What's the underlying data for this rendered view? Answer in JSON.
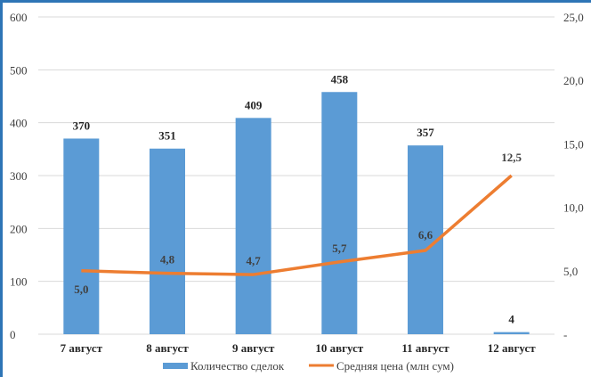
{
  "chart_data": {
    "type": "bar",
    "categories": [
      "7 август",
      "8 август",
      "9 август",
      "10 август",
      "11 август",
      "12 август"
    ],
    "series": [
      {
        "name": "Количество сделок",
        "type": "bar",
        "axis": "left",
        "values": [
          370,
          351,
          409,
          458,
          357,
          4
        ]
      },
      {
        "name": "Средняя цена (млн сум)",
        "type": "line",
        "axis": "right",
        "values": [
          5.0,
          4.8,
          4.7,
          5.7,
          6.6,
          12.5
        ]
      }
    ],
    "bar_labels": [
      "370",
      "351",
      "409",
      "458",
      "357",
      "4"
    ],
    "line_labels": [
      "5,0",
      "4,8",
      "4,7",
      "5,7",
      "6,6",
      "12,5"
    ],
    "ylim": [
      0,
      600
    ],
    "y_ticks": [
      "0",
      "100",
      "200",
      "300",
      "400",
      "500",
      "600"
    ],
    "y2lim": [
      0,
      25
    ],
    "y2_ticks": [
      "-",
      "5,0",
      "10,0",
      "15,0",
      "20,0",
      "25,0"
    ],
    "grid": true,
    "legend": "bottom",
    "colors": {
      "bar": "#5b9bd5",
      "line": "#ed7d31",
      "grid": "#d9d9d9",
      "frame": "#2e75b6"
    }
  }
}
